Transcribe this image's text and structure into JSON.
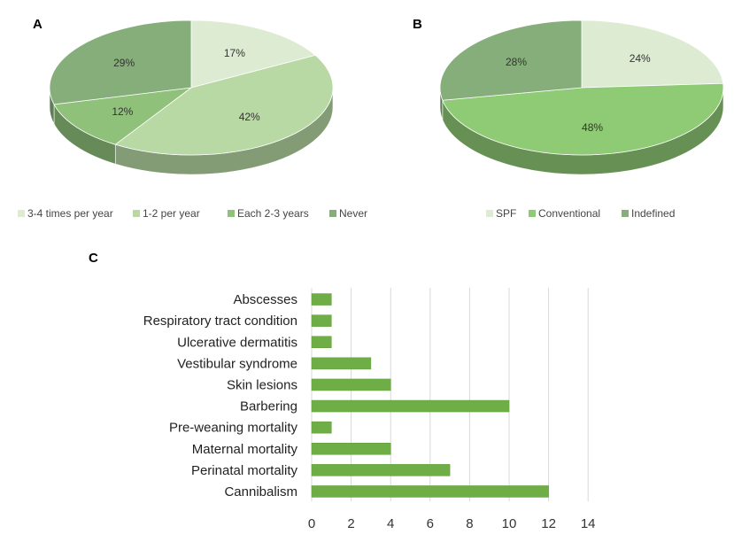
{
  "colors": {
    "bar": "#6fae47",
    "bar_edge": "#5e9a3a",
    "grid": "#d9d9d9",
    "pie_a": [
      "#dcebd2",
      "#b8d8a4",
      "#8fc17a",
      "#86ae7a"
    ],
    "pie_b": [
      "#dcebd2",
      "#8fca74",
      "#86ae7a"
    ]
  },
  "chart_data": [
    {
      "panel": "A",
      "type": "pie",
      "labels": [
        "3-4 times per year",
        "1-2 per year",
        "Each 2-3 years",
        "Never"
      ],
      "values": [
        17,
        42,
        12,
        29
      ],
      "value_labels": [
        "17%",
        "42%",
        "12%",
        "29%"
      ],
      "legend_position": "bottom"
    },
    {
      "panel": "B",
      "type": "pie",
      "labels": [
        "SPF",
        "Conventional",
        "Indefined"
      ],
      "values": [
        24,
        48,
        28
      ],
      "value_labels": [
        "24%",
        "48%",
        "28%"
      ],
      "legend_position": "bottom"
    },
    {
      "panel": "C",
      "type": "bar",
      "orientation": "horizontal",
      "categories": [
        "Abscesses",
        "Respiratory tract condition",
        "Ulcerative dermatitis",
        "Vestibular syndrome",
        "Skin lesions",
        "Barbering",
        "Pre-weaning mortality",
        "Maternal mortality",
        "Perinatal mortality",
        "Cannibalism"
      ],
      "values": [
        1,
        1,
        1,
        3,
        4,
        10,
        1,
        4,
        7,
        12
      ],
      "xlim": [
        0,
        14
      ],
      "xticks": [
        "0",
        "2",
        "4",
        "6",
        "8",
        "10",
        "12",
        "14"
      ],
      "grid": true
    }
  ]
}
